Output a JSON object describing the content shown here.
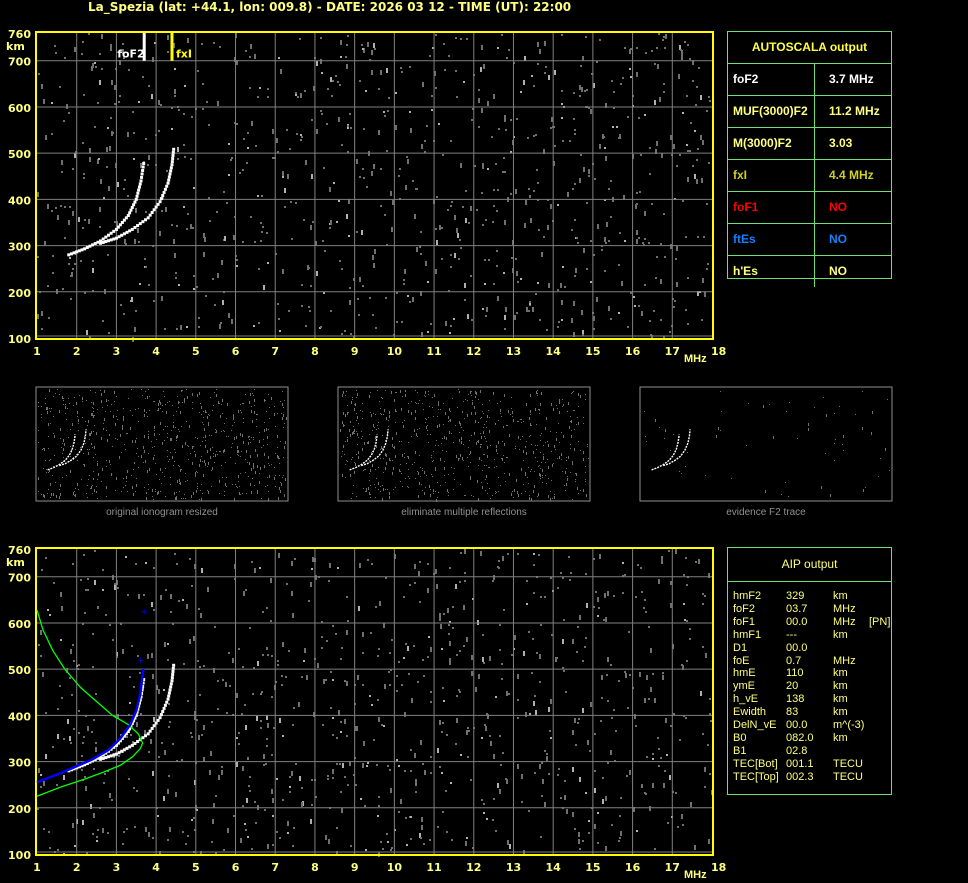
{
  "header": {
    "title": "La_Spezia (lat: +44.1, lon: 009.8) - DATE: 2026 03 12 - TIME (UT): 22:00"
  },
  "colors": {
    "axis": "#ffff00",
    "grid": "#808080",
    "panel_border": "#70e070",
    "o_trace": "#ffffff",
    "fit_trace": "#0000ff",
    "profile": "#00ff00",
    "fxI_marker": "#ffff00",
    "foF2_marker": "#ffffff"
  },
  "chart_data": [
    {
      "type": "scatter",
      "name_id": "ionogram-autoscala",
      "xlabel": "MHz",
      "ylabel": "km",
      "xlim": [
        1,
        18
      ],
      "ylim": [
        100,
        760
      ],
      "xticks": [
        1,
        2,
        3,
        4,
        5,
        6,
        7,
        8,
        9,
        10,
        11,
        12,
        13,
        14,
        15,
        16,
        17,
        18
      ],
      "yticks": [
        760,
        700,
        600,
        500,
        400,
        300,
        200,
        100
      ],
      "grid": true,
      "markers": [
        {
          "label": "foF2",
          "x": 3.7,
          "color": "#ffffff"
        },
        {
          "label": "fxI",
          "x": 4.4,
          "color": "#ffff00"
        }
      ],
      "traces": [
        {
          "kind": "o-trace",
          "points": [
            [
              1.8,
              280
            ],
            [
              2.2,
              293
            ],
            [
              2.6,
              310
            ],
            [
              3.0,
              335
            ],
            [
              3.3,
              365
            ],
            [
              3.5,
              400
            ],
            [
              3.62,
              440
            ],
            [
              3.7,
              485
            ]
          ]
        },
        {
          "kind": "x-trace",
          "points": [
            [
              2.6,
              305
            ],
            [
              3.0,
              316
            ],
            [
              3.4,
              335
            ],
            [
              3.8,
              360
            ],
            [
              4.1,
              395
            ],
            [
              4.3,
              435
            ],
            [
              4.4,
              475
            ],
            [
              4.45,
              515
            ]
          ]
        }
      ]
    },
    {
      "type": "line",
      "name_id": "ionogram-aip",
      "xlabel": "MHz",
      "ylabel": "km",
      "xlim": [
        1,
        18
      ],
      "ylim": [
        100,
        760
      ],
      "xticks": [
        1,
        2,
        3,
        4,
        5,
        6,
        7,
        8,
        9,
        10,
        11,
        12,
        13,
        14,
        15,
        16,
        17,
        18
      ],
      "yticks": [
        760,
        700,
        600,
        500,
        400,
        300,
        200,
        100
      ],
      "grid": true,
      "traces": [
        {
          "kind": "o-trace",
          "points": [
            [
              1.8,
              280
            ],
            [
              2.2,
              293
            ],
            [
              2.6,
              310
            ],
            [
              3.0,
              335
            ],
            [
              3.3,
              365
            ],
            [
              3.5,
              400
            ],
            [
              3.62,
              440
            ],
            [
              3.7,
              485
            ]
          ]
        },
        {
          "kind": "x-trace",
          "points": [
            [
              2.6,
              305
            ],
            [
              3.0,
              316
            ],
            [
              3.4,
              335
            ],
            [
              3.8,
              360
            ],
            [
              4.1,
              395
            ],
            [
              4.3,
              435
            ],
            [
              4.4,
              475
            ],
            [
              4.45,
              515
            ]
          ]
        }
      ],
      "fitted_trace": [
        [
          1.0,
          255
        ],
        [
          1.2,
          262
        ],
        [
          1.6,
          275
        ],
        [
          2.0,
          290
        ],
        [
          2.4,
          305
        ],
        [
          2.8,
          325
        ],
        [
          3.1,
          350
        ],
        [
          3.35,
          380
        ],
        [
          3.5,
          410
        ],
        [
          3.6,
          445
        ],
        [
          3.65,
          480
        ],
        [
          3.68,
          500
        ]
      ],
      "fitted_points_extra": [
        [
          3.7,
          625
        ],
        [
          3.6,
          520
        ]
      ],
      "electron_density_profile": [
        [
          1.0,
          225
        ],
        [
          1.6,
          245
        ],
        [
          2.2,
          262
        ],
        [
          2.7,
          278
        ],
        [
          3.1,
          292
        ],
        [
          3.4,
          310
        ],
        [
          3.6,
          328
        ],
        [
          3.66,
          340
        ],
        [
          3.55,
          360
        ],
        [
          3.3,
          380
        ],
        [
          2.9,
          400
        ],
        [
          2.5,
          430
        ],
        [
          2.1,
          460
        ],
        [
          1.7,
          500
        ],
        [
          1.4,
          540
        ],
        [
          1.15,
          585
        ],
        [
          1.0,
          628
        ]
      ]
    }
  ],
  "thumbnails": [
    {
      "caption": "original ionogram resized",
      "noise": "high"
    },
    {
      "caption": "eliminate multiple reflections",
      "noise": "high"
    },
    {
      "caption": "evidence F2 trace",
      "noise": "low"
    }
  ],
  "autoscala": {
    "title": "AUTOSCALA output",
    "rows": [
      {
        "key": "foF2",
        "value": "3.7 MHz",
        "color": "#ffffff"
      },
      {
        "key": "MUF(3000)F2",
        "value": "11.2 MHz",
        "color": "#ffff80"
      },
      {
        "key": "M(3000)F2",
        "value": "3.03",
        "color": "#ffff80"
      },
      {
        "key": "fxI",
        "value": "4.4 MHz",
        "color": "#d0d020"
      },
      {
        "key": "foF1",
        "value": "NO",
        "color": "#ff0000"
      },
      {
        "key": "ftEs",
        "value": "NO",
        "color": "#1080ff"
      },
      {
        "key": "h'Es",
        "value": "NO",
        "color": "#ffff80"
      }
    ]
  },
  "aip": {
    "title": "AIP output",
    "rows": [
      {
        "key": "hmF2",
        "value": "329",
        "unit": "km",
        "extra": ""
      },
      {
        "key": "foF2",
        "value": "03.7",
        "unit": "MHz",
        "extra": ""
      },
      {
        "key": "foF1",
        "value": "00.0",
        "unit": "MHz",
        "extra": "[PN]"
      },
      {
        "key": "hmF1",
        "value": "---",
        "unit": "km",
        "extra": ""
      },
      {
        "key": "D1",
        "value": "00.0",
        "unit": "",
        "extra": ""
      },
      {
        "key": "foE",
        "value": "0.7",
        "unit": "MHz",
        "extra": ""
      },
      {
        "key": "hmE",
        "value": "110",
        "unit": "km",
        "extra": ""
      },
      {
        "key": "ymE",
        "value": "20",
        "unit": "km",
        "extra": ""
      },
      {
        "key": "h_vE",
        "value": "138",
        "unit": "km",
        "extra": ""
      },
      {
        "key": "Ewidth",
        "value": "83",
        "unit": "km",
        "extra": ""
      },
      {
        "key": "DelN_vE",
        "value": "00.0",
        "unit": "m^(-3)",
        "extra": ""
      },
      {
        "key": "B0",
        "value": "082.0",
        "unit": "km",
        "extra": ""
      },
      {
        "key": "B1",
        "value": "02.8",
        "unit": "",
        "extra": ""
      },
      {
        "key": "TEC[Bot]",
        "value": "001.1",
        "unit": "TECU",
        "extra": ""
      },
      {
        "key": "TEC[Top]",
        "value": "002.3",
        "unit": "TECU",
        "extra": ""
      }
    ]
  }
}
